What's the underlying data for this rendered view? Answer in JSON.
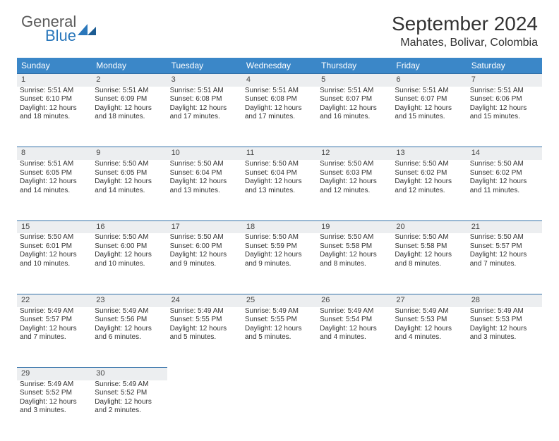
{
  "brand": {
    "part1": "General",
    "part2": "Blue",
    "color_general": "#5a5a5a",
    "color_blue": "#2a77bb"
  },
  "title": "September 2024",
  "location": "Mahates, Bolivar, Colombia",
  "colors": {
    "header_bg": "#3b87c8",
    "header_text": "#ffffff",
    "daybar_bg": "#eceef0",
    "daybar_border": "#2f6ea7",
    "body_text": "#333333",
    "page_bg": "#ffffff"
  },
  "weekdays": [
    "Sunday",
    "Monday",
    "Tuesday",
    "Wednesday",
    "Thursday",
    "Friday",
    "Saturday"
  ],
  "weeks": [
    [
      {
        "n": "1",
        "sr": "Sunrise: 5:51 AM",
        "ss": "Sunset: 6:10 PM",
        "d1": "Daylight: 12 hours",
        "d2": "and 18 minutes."
      },
      {
        "n": "2",
        "sr": "Sunrise: 5:51 AM",
        "ss": "Sunset: 6:09 PM",
        "d1": "Daylight: 12 hours",
        "d2": "and 18 minutes."
      },
      {
        "n": "3",
        "sr": "Sunrise: 5:51 AM",
        "ss": "Sunset: 6:08 PM",
        "d1": "Daylight: 12 hours",
        "d2": "and 17 minutes."
      },
      {
        "n": "4",
        "sr": "Sunrise: 5:51 AM",
        "ss": "Sunset: 6:08 PM",
        "d1": "Daylight: 12 hours",
        "d2": "and 17 minutes."
      },
      {
        "n": "5",
        "sr": "Sunrise: 5:51 AM",
        "ss": "Sunset: 6:07 PM",
        "d1": "Daylight: 12 hours",
        "d2": "and 16 minutes."
      },
      {
        "n": "6",
        "sr": "Sunrise: 5:51 AM",
        "ss": "Sunset: 6:07 PM",
        "d1": "Daylight: 12 hours",
        "d2": "and 15 minutes."
      },
      {
        "n": "7",
        "sr": "Sunrise: 5:51 AM",
        "ss": "Sunset: 6:06 PM",
        "d1": "Daylight: 12 hours",
        "d2": "and 15 minutes."
      }
    ],
    [
      {
        "n": "8",
        "sr": "Sunrise: 5:51 AM",
        "ss": "Sunset: 6:05 PM",
        "d1": "Daylight: 12 hours",
        "d2": "and 14 minutes."
      },
      {
        "n": "9",
        "sr": "Sunrise: 5:50 AM",
        "ss": "Sunset: 6:05 PM",
        "d1": "Daylight: 12 hours",
        "d2": "and 14 minutes."
      },
      {
        "n": "10",
        "sr": "Sunrise: 5:50 AM",
        "ss": "Sunset: 6:04 PM",
        "d1": "Daylight: 12 hours",
        "d2": "and 13 minutes."
      },
      {
        "n": "11",
        "sr": "Sunrise: 5:50 AM",
        "ss": "Sunset: 6:04 PM",
        "d1": "Daylight: 12 hours",
        "d2": "and 13 minutes."
      },
      {
        "n": "12",
        "sr": "Sunrise: 5:50 AM",
        "ss": "Sunset: 6:03 PM",
        "d1": "Daylight: 12 hours",
        "d2": "and 12 minutes."
      },
      {
        "n": "13",
        "sr": "Sunrise: 5:50 AM",
        "ss": "Sunset: 6:02 PM",
        "d1": "Daylight: 12 hours",
        "d2": "and 12 minutes."
      },
      {
        "n": "14",
        "sr": "Sunrise: 5:50 AM",
        "ss": "Sunset: 6:02 PM",
        "d1": "Daylight: 12 hours",
        "d2": "and 11 minutes."
      }
    ],
    [
      {
        "n": "15",
        "sr": "Sunrise: 5:50 AM",
        "ss": "Sunset: 6:01 PM",
        "d1": "Daylight: 12 hours",
        "d2": "and 10 minutes."
      },
      {
        "n": "16",
        "sr": "Sunrise: 5:50 AM",
        "ss": "Sunset: 6:00 PM",
        "d1": "Daylight: 12 hours",
        "d2": "and 10 minutes."
      },
      {
        "n": "17",
        "sr": "Sunrise: 5:50 AM",
        "ss": "Sunset: 6:00 PM",
        "d1": "Daylight: 12 hours",
        "d2": "and 9 minutes."
      },
      {
        "n": "18",
        "sr": "Sunrise: 5:50 AM",
        "ss": "Sunset: 5:59 PM",
        "d1": "Daylight: 12 hours",
        "d2": "and 9 minutes."
      },
      {
        "n": "19",
        "sr": "Sunrise: 5:50 AM",
        "ss": "Sunset: 5:58 PM",
        "d1": "Daylight: 12 hours",
        "d2": "and 8 minutes."
      },
      {
        "n": "20",
        "sr": "Sunrise: 5:50 AM",
        "ss": "Sunset: 5:58 PM",
        "d1": "Daylight: 12 hours",
        "d2": "and 8 minutes."
      },
      {
        "n": "21",
        "sr": "Sunrise: 5:50 AM",
        "ss": "Sunset: 5:57 PM",
        "d1": "Daylight: 12 hours",
        "d2": "and 7 minutes."
      }
    ],
    [
      {
        "n": "22",
        "sr": "Sunrise: 5:49 AM",
        "ss": "Sunset: 5:57 PM",
        "d1": "Daylight: 12 hours",
        "d2": "and 7 minutes."
      },
      {
        "n": "23",
        "sr": "Sunrise: 5:49 AM",
        "ss": "Sunset: 5:56 PM",
        "d1": "Daylight: 12 hours",
        "d2": "and 6 minutes."
      },
      {
        "n": "24",
        "sr": "Sunrise: 5:49 AM",
        "ss": "Sunset: 5:55 PM",
        "d1": "Daylight: 12 hours",
        "d2": "and 5 minutes."
      },
      {
        "n": "25",
        "sr": "Sunrise: 5:49 AM",
        "ss": "Sunset: 5:55 PM",
        "d1": "Daylight: 12 hours",
        "d2": "and 5 minutes."
      },
      {
        "n": "26",
        "sr": "Sunrise: 5:49 AM",
        "ss": "Sunset: 5:54 PM",
        "d1": "Daylight: 12 hours",
        "d2": "and 4 minutes."
      },
      {
        "n": "27",
        "sr": "Sunrise: 5:49 AM",
        "ss": "Sunset: 5:53 PM",
        "d1": "Daylight: 12 hours",
        "d2": "and 4 minutes."
      },
      {
        "n": "28",
        "sr": "Sunrise: 5:49 AM",
        "ss": "Sunset: 5:53 PM",
        "d1": "Daylight: 12 hours",
        "d2": "and 3 minutes."
      }
    ],
    [
      {
        "n": "29",
        "sr": "Sunrise: 5:49 AM",
        "ss": "Sunset: 5:52 PM",
        "d1": "Daylight: 12 hours",
        "d2": "and 3 minutes."
      },
      {
        "n": "30",
        "sr": "Sunrise: 5:49 AM",
        "ss": "Sunset: 5:52 PM",
        "d1": "Daylight: 12 hours",
        "d2": "and 2 minutes."
      },
      null,
      null,
      null,
      null,
      null
    ]
  ]
}
